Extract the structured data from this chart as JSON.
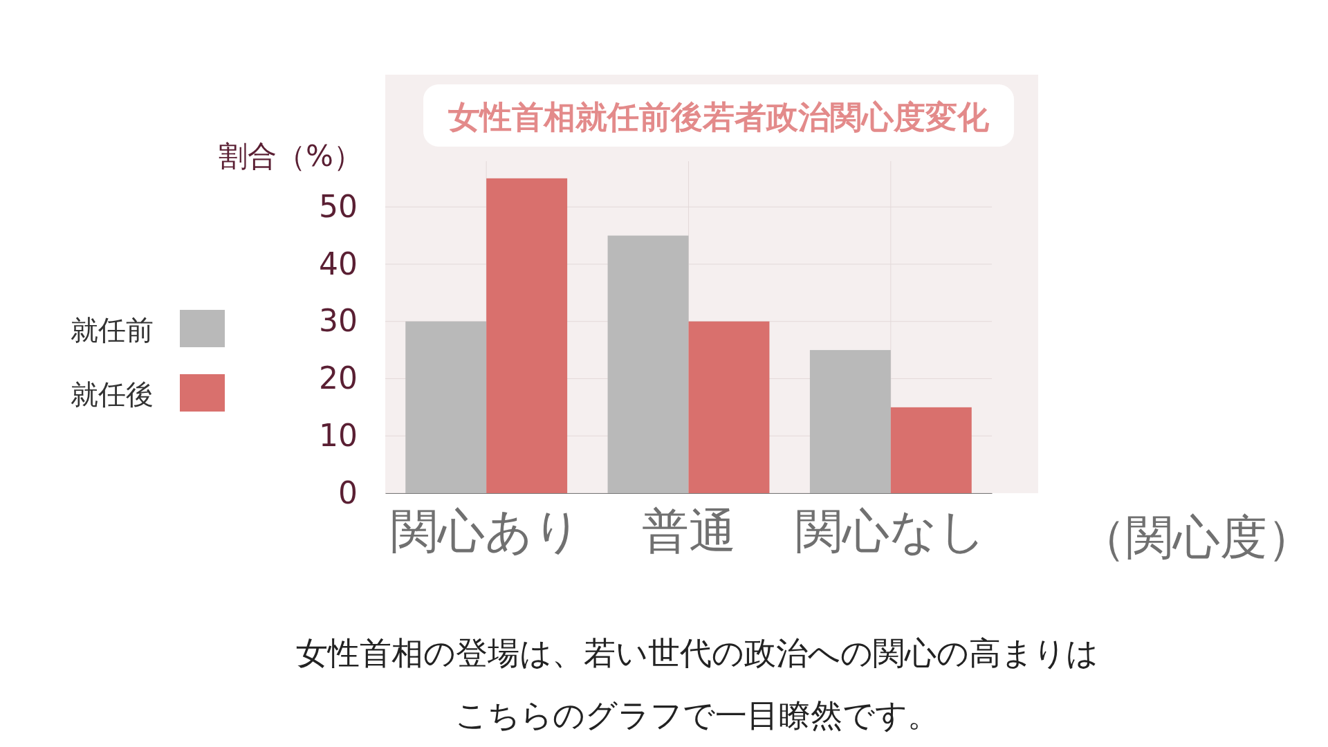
{
  "chart_data": {
    "type": "bar",
    "title": "女性首相就任前後若者政治関心度変化",
    "xlabel": "（関心度）",
    "ylabel": "割合（%）",
    "categories": [
      "関心あり",
      "普通",
      "関心なし"
    ],
    "series": [
      {
        "name": "就任前",
        "color": "#b9b9b9",
        "values": [
          30,
          45,
          25
        ]
      },
      {
        "name": "就任後",
        "color": "#d9706d",
        "values": [
          55,
          30,
          15
        ]
      }
    ],
    "ylim": [
      0,
      58
    ],
    "yticks": [
      0,
      10,
      20,
      30,
      40,
      50
    ],
    "grid": true,
    "legend": "left",
    "annotations": [
      "女性首相の登場は、若い世代の政治への関心の高まりは",
      "こちらのグラフで一目瞭然です。"
    ]
  }
}
